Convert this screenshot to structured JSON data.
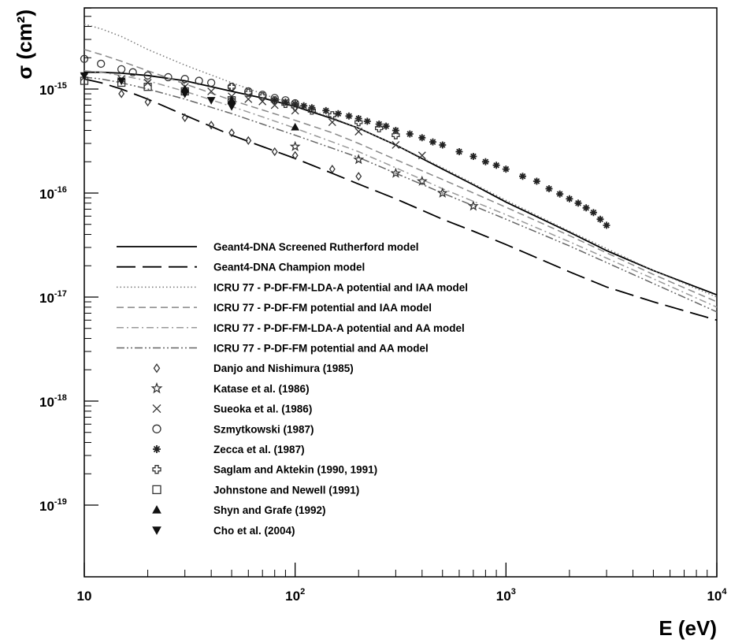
{
  "chart_data": {
    "type": "scatter",
    "title": "",
    "xlabel": "E (eV)",
    "ylabel": "σ (cm²)",
    "xscale": "log",
    "yscale": "log",
    "xlim": [
      10,
      10000
    ],
    "ylim": [
      1e-19,
      5e-15
    ],
    "x_ticks": [
      {
        "value": 10,
        "base": "10",
        "exp": ""
      },
      {
        "value": 100,
        "base": "10",
        "exp": "2"
      },
      {
        "value": 1000,
        "base": "10",
        "exp": "3"
      },
      {
        "value": 10000,
        "base": "10",
        "exp": "4"
      }
    ],
    "y_ticks": [
      {
        "value": 1e-15,
        "base": "10",
        "exp": "-15"
      },
      {
        "value": 1e-16,
        "base": "10",
        "exp": "-16"
      },
      {
        "value": 1e-17,
        "base": "10",
        "exp": "-17"
      },
      {
        "value": 1e-18,
        "base": "10",
        "exp": "-18"
      },
      {
        "value": 1e-19,
        "base": "10",
        "exp": "-19"
      }
    ],
    "grid": false,
    "legend_position": "center-left",
    "series": [
      {
        "name": "Geant4-DNA Screened Rutherford model",
        "kind": "line",
        "dash": "solid",
        "x": [
          10,
          12,
          15,
          20,
          30,
          50,
          70,
          100,
          150,
          200,
          300,
          500,
          700,
          1000,
          2000,
          3000,
          5000,
          10000
        ],
        "y": [
          1.45e-15,
          1.45e-15,
          1.42e-15,
          1.35e-15,
          1.2e-15,
          9.5e-16,
          8.2e-16,
          6.8e-16,
          5.2e-16,
          4.2e-16,
          2.9e-16,
          1.7e-16,
          1.2e-16,
          8.2e-17,
          4.2e-17,
          2.8e-17,
          1.8e-17,
          1.05e-17
        ]
      },
      {
        "name": "Geant4-DNA Champion model",
        "kind": "line",
        "dash": "long-dash",
        "x": [
          10,
          12,
          15,
          20,
          30,
          50,
          70,
          100,
          150,
          200,
          300,
          500,
          700,
          1000,
          2000,
          3000,
          5000,
          10000
        ],
        "y": [
          1.25e-15,
          1.15e-15,
          1e-15,
          8e-16,
          5.6e-16,
          3.6e-16,
          2.8e-16,
          2.15e-16,
          1.55e-16,
          1.22e-16,
          8.8e-17,
          5.6e-17,
          4.3e-17,
          3.2e-17,
          1.75e-17,
          1.25e-17,
          9e-18,
          6e-18
        ]
      },
      {
        "name": "ICRU 77 - P-DF-FM-LDA-A potential and IAA model",
        "kind": "line",
        "dash": "dotted",
        "x": [
          10,
          12,
          15,
          20,
          30,
          50,
          70,
          100,
          150,
          200,
          300,
          500,
          1000,
          2000,
          5000,
          10000
        ],
        "y": [
          4.2e-15,
          3.8e-15,
          3.2e-15,
          2.4e-15,
          1.7e-15,
          1.15e-15,
          9e-16,
          7e-16,
          5.3e-16,
          4.2e-16,
          2.9e-16,
          1.75e-16,
          8.5e-17,
          4.3e-17,
          1.8e-17,
          1e-17
        ]
      },
      {
        "name": "ICRU 77 - P-DF-FM potential and IAA model",
        "kind": "line",
        "dash": "dashed",
        "x": [
          10,
          12,
          15,
          20,
          30,
          50,
          70,
          100,
          150,
          200,
          300,
          500,
          1000,
          2000,
          5000,
          10000
        ],
        "y": [
          2.4e-15,
          2.15e-15,
          1.85e-15,
          1.5e-15,
          1.12e-15,
          7.8e-16,
          6.3e-16,
          5e-16,
          3.8e-16,
          3e-16,
          2.1e-16,
          1.35e-16,
          7.3e-17,
          3.9e-17,
          1.65e-17,
          9e-18
        ]
      },
      {
        "name": "ICRU 77 - P-DF-FM-LDA-A potential and AA model",
        "kind": "line",
        "dash": "dash-dot",
        "x": [
          10,
          12,
          15,
          20,
          30,
          50,
          70,
          100,
          150,
          200,
          300,
          500,
          1000,
          2000,
          5000,
          10000
        ],
        "y": [
          1.5e-15,
          1.45e-15,
          1.35e-15,
          1.2e-15,
          9.5e-16,
          6.8e-16,
          5.4e-16,
          4.2e-16,
          3.1e-16,
          2.5e-16,
          1.75e-16,
          1.1e-16,
          6.2e-17,
          3.4e-17,
          1.5e-17,
          8e-18
        ]
      },
      {
        "name": "ICRU 77 - P-DF-FM potential and AA model",
        "kind": "line",
        "dash": "dash-dot-dot",
        "x": [
          10,
          12,
          15,
          20,
          30,
          50,
          70,
          100,
          150,
          200,
          300,
          500,
          1000,
          2000,
          5000,
          10000
        ],
        "y": [
          1.3e-15,
          1.25e-15,
          1.15e-15,
          1e-15,
          8e-16,
          5.8e-16,
          4.6e-16,
          3.6e-16,
          2.7e-16,
          2.2e-16,
          1.55e-16,
          1e-16,
          5.6e-17,
          3.1e-17,
          1.35e-17,
          7.2e-18
        ]
      },
      {
        "name": "Danjo and Nishimura (1985)",
        "kind": "points",
        "marker": "diamond",
        "x": [
          15,
          20,
          30,
          40,
          50,
          60,
          80,
          100,
          150,
          200
        ],
        "y": [
          9e-16,
          7.5e-16,
          5.3e-16,
          4.5e-16,
          3.8e-16,
          3.2e-16,
          2.5e-16,
          2.3e-16,
          1.7e-16,
          1.45e-16
        ]
      },
      {
        "name": "Katase et al. (1986)",
        "kind": "points",
        "marker": "star",
        "x": [
          100,
          200,
          300,
          400,
          500,
          700
        ],
        "y": [
          2.8e-16,
          2.1e-16,
          1.55e-16,
          1.3e-16,
          1e-16,
          7.5e-17
        ]
      },
      {
        "name": "Sueoka et al. (1986)",
        "kind": "points",
        "marker": "cross",
        "x": [
          10,
          15,
          20,
          30,
          40,
          50,
          60,
          70,
          80,
          100,
          150,
          200,
          300,
          400
        ],
        "y": [
          1.3e-15,
          1.25e-15,
          1.15e-15,
          1.05e-15,
          9.5e-16,
          8.5e-16,
          8e-16,
          7.6e-16,
          7e-16,
          6.2e-16,
          4.8e-16,
          3.9e-16,
          2.9e-16,
          2.3e-16
        ]
      },
      {
        "name": "Szmytkowski (1987)",
        "kind": "points",
        "marker": "circle",
        "x": [
          10,
          12,
          15,
          17,
          20,
          25,
          30,
          35,
          40,
          50,
          60,
          70,
          80,
          90,
          100
        ],
        "y": [
          1.95e-15,
          1.75e-15,
          1.55e-15,
          1.45e-15,
          1.35e-15,
          1.3e-15,
          1.25e-15,
          1.2e-15,
          1.15e-15,
          1.05e-15,
          9.5e-16,
          8.8e-16,
          8.2e-16,
          7.8e-16,
          7.3e-16
        ]
      },
      {
        "name": "Zecca et al. (1987)",
        "kind": "points",
        "marker": "asterisk",
        "x": [
          80,
          90,
          100,
          110,
          120,
          140,
          160,
          180,
          200,
          220,
          250,
          270,
          300,
          350,
          400,
          450,
          500,
          600,
          700,
          800,
          900,
          1000,
          1200,
          1400,
          1600,
          1800,
          2000,
          2200,
          2400,
          2600,
          2800,
          3000
        ],
        "y": [
          7.8e-16,
          7.5e-16,
          7.2e-16,
          6.9e-16,
          6.6e-16,
          6.2e-16,
          5.8e-16,
          5.5e-16,
          5.2e-16,
          4.9e-16,
          4.6e-16,
          4.4e-16,
          4e-16,
          3.7e-16,
          3.4e-16,
          3.1e-16,
          2.9e-16,
          2.5e-16,
          2.25e-16,
          2e-16,
          1.85e-16,
          1.7e-16,
          1.45e-16,
          1.3e-16,
          1.1e-16,
          9.8e-17,
          8.8e-17,
          8e-17,
          7.2e-17,
          6.5e-17,
          5.6e-17,
          4.9e-17
        ]
      },
      {
        "name": "Saglam and Aktekin (1990, 1991)",
        "kind": "points",
        "marker": "open-cross",
        "x": [
          50,
          60,
          70,
          80,
          90,
          100,
          120,
          150,
          200,
          250,
          300
        ],
        "y": [
          1.05e-15,
          9.2e-16,
          8.5e-16,
          7.8e-16,
          7.2e-16,
          6.8e-16,
          6.2e-16,
          5.6e-16,
          4.8e-16,
          4.2e-16,
          3.6e-16
        ]
      },
      {
        "name": "Johnstone and Newell (1991)",
        "kind": "points",
        "marker": "square",
        "x": [
          10,
          15,
          20,
          30,
          50
        ],
        "y": [
          1.2e-15,
          1.15e-15,
          1.05e-15,
          9.5e-16,
          7.8e-16
        ]
      },
      {
        "name": "Shyn and Grafe (1992)",
        "kind": "points",
        "marker": "triangle-up",
        "x": [
          30,
          50,
          100
        ],
        "y": [
          1e-15,
          7.8e-16,
          4.3e-16
        ]
      },
      {
        "name": "Cho et al. (2004)",
        "kind": "points",
        "marker": "triangle-down",
        "x": [
          10,
          15,
          30,
          40,
          50
        ],
        "y": [
          1.35e-15,
          1.2e-15,
          9e-16,
          7.8e-16,
          6.8e-16
        ]
      }
    ]
  }
}
